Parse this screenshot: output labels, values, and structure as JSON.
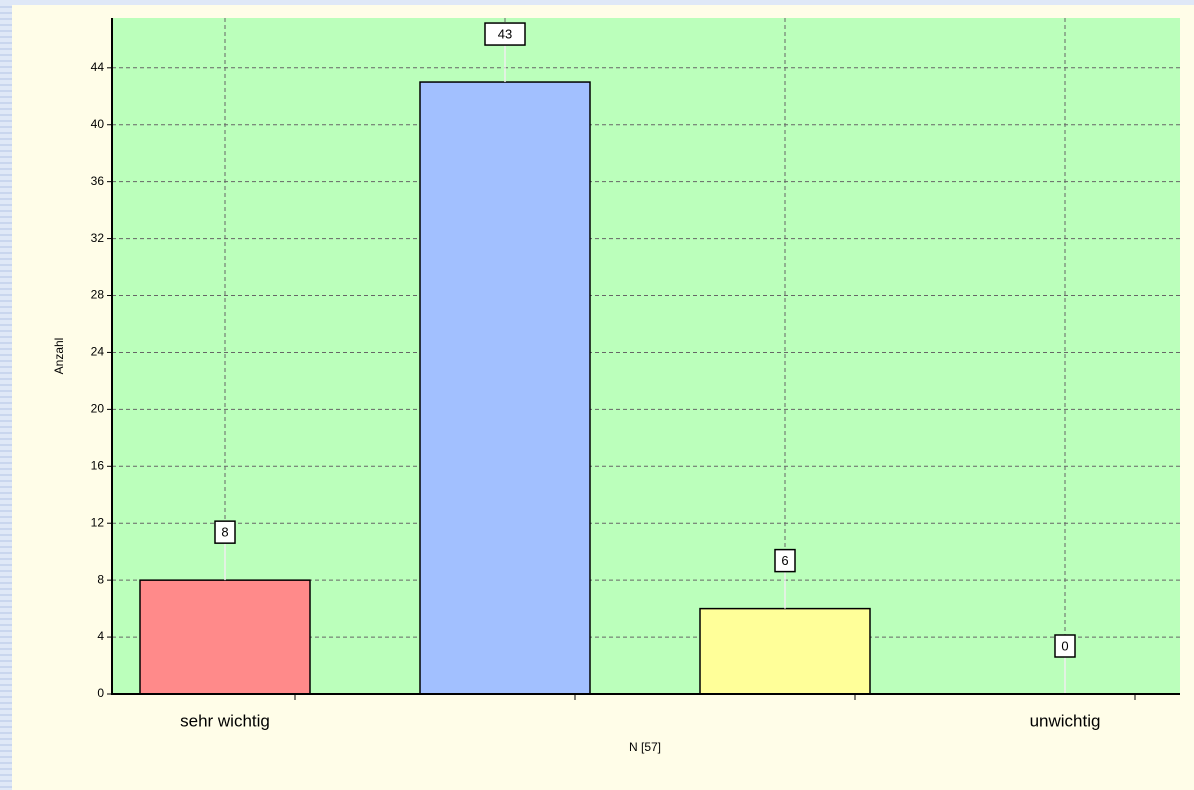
{
  "chart_data": {
    "type": "bar",
    "categories": [
      "sehr wichtig",
      null,
      null,
      "unwichtig"
    ],
    "values": [
      8,
      43,
      6,
      0
    ],
    "colors": [
      "#ff8a8a",
      "#a2c0ff",
      "#ffff99",
      "#cccccc"
    ],
    "ylabel": "Anzahl",
    "xlabel": "N [57]",
    "ylim": [
      0,
      47.5
    ],
    "yticks": [
      0,
      4,
      8,
      12,
      16,
      20,
      24,
      28,
      32,
      36,
      40,
      44
    ],
    "grid": true
  }
}
